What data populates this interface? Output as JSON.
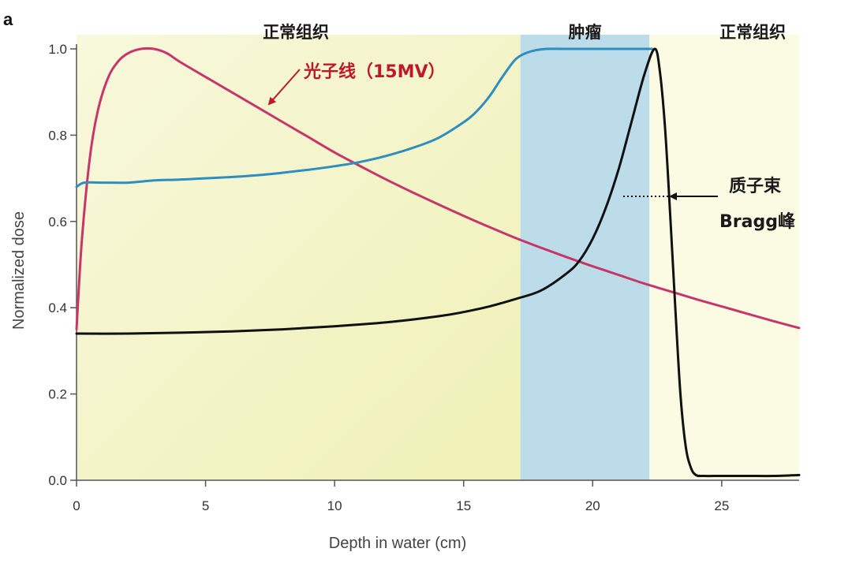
{
  "chart_data": {
    "type": "line",
    "panel_label": "a",
    "xlabel": "Depth in water (cm)",
    "ylabel": "Normalized dose",
    "xlim": [
      0,
      28
    ],
    "ylim": [
      0,
      1.0
    ],
    "x_ticks": [
      0,
      5,
      10,
      15,
      20,
      25
    ],
    "x_tick_labels": [
      "0",
      "5",
      "10",
      "15",
      "20",
      "25"
    ],
    "y_ticks": [
      0.0,
      0.2,
      0.4,
      0.6,
      0.8,
      1.0
    ],
    "y_tick_labels": [
      "0.0",
      "0.2",
      "0.4",
      "0.6",
      "0.8",
      "1.0"
    ],
    "regions": [
      {
        "name": "normal-tissue-proximal",
        "label": "正常组织",
        "x_start": 0,
        "x_end": 17.2,
        "color": "#f2f3c4"
      },
      {
        "name": "tumor",
        "label": "肿瘤",
        "x_start": 17.2,
        "x_end": 22.2,
        "color": "#bcdcea"
      },
      {
        "name": "normal-tissue-distal",
        "label": "正常组织",
        "x_start": 22.2,
        "x_end": 28,
        "color": "#fbfbe4"
      }
    ],
    "series": [
      {
        "name": "photon-15mv",
        "color": "#c8356b",
        "x": [
          0,
          0.2,
          0.5,
          0.8,
          1.2,
          1.6,
          2.0,
          2.5,
          3.0,
          3.5,
          4.0,
          5,
          6,
          7,
          8,
          9,
          10,
          11,
          12,
          13,
          14,
          15,
          16,
          17,
          18,
          19,
          20,
          21,
          22,
          23,
          24,
          25,
          26,
          27,
          28
        ],
        "values": [
          0.35,
          0.55,
          0.74,
          0.85,
          0.93,
          0.97,
          0.99,
          1.0,
          1.0,
          0.99,
          0.97,
          0.935,
          0.9,
          0.865,
          0.83,
          0.795,
          0.76,
          0.728,
          0.697,
          0.668,
          0.64,
          0.613,
          0.587,
          0.562,
          0.539,
          0.517,
          0.496,
          0.476,
          0.456,
          0.438,
          0.42,
          0.403,
          0.386,
          0.369,
          0.353
        ]
      },
      {
        "name": "spread-out-bragg-peak",
        "color": "#2f8ec0",
        "x": [
          0,
          0.3,
          1,
          2,
          3,
          4,
          5,
          6,
          7,
          8,
          9,
          10,
          11,
          12,
          13,
          14,
          15,
          15.5,
          16,
          16.5,
          17,
          17.4,
          17.8,
          18.2,
          18.8,
          20,
          21,
          22,
          22.3
        ],
        "values": [
          0.68,
          0.69,
          0.69,
          0.69,
          0.695,
          0.697,
          0.7,
          0.703,
          0.707,
          0.713,
          0.72,
          0.728,
          0.738,
          0.752,
          0.77,
          0.793,
          0.83,
          0.855,
          0.89,
          0.935,
          0.975,
          0.99,
          0.997,
          1.0,
          1.0,
          1.0,
          1.0,
          1.0,
          1.0
        ]
      },
      {
        "name": "proton-bragg-peak",
        "color": "#111111",
        "x": [
          0,
          2,
          4,
          6,
          8,
          10,
          12,
          14,
          15,
          16,
          17,
          18,
          19,
          19.5,
          20,
          20.5,
          21,
          21.5,
          22,
          22.4,
          22.6,
          22.8,
          23.0,
          23.2,
          23.4,
          23.6,
          23.8,
          24.0,
          24.3,
          25,
          26,
          27,
          28
        ],
        "values": [
          0.34,
          0.34,
          0.342,
          0.345,
          0.35,
          0.357,
          0.366,
          0.38,
          0.39,
          0.403,
          0.42,
          0.44,
          0.48,
          0.51,
          0.56,
          0.63,
          0.72,
          0.83,
          0.94,
          1.0,
          0.95,
          0.82,
          0.62,
          0.4,
          0.2,
          0.08,
          0.03,
          0.012,
          0.01,
          0.01,
          0.01,
          0.01,
          0.012
        ]
      }
    ],
    "annotations": {
      "photon_label": "光子线（15MV）",
      "photon_color": "#c0182b",
      "proton_label_line1": "质子束",
      "proton_label_line2": "Bragg峰"
    }
  }
}
